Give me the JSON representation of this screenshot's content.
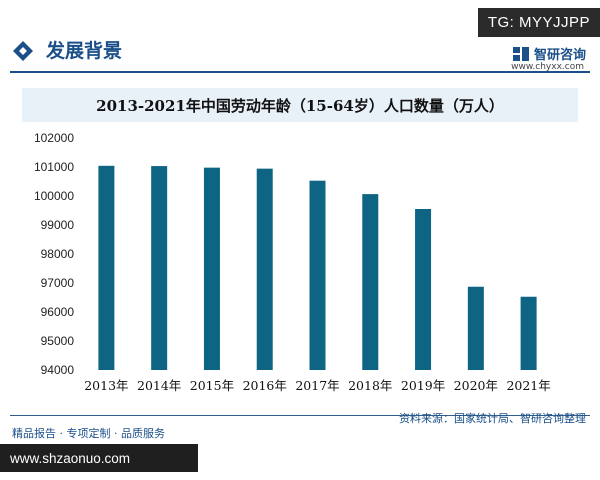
{
  "header": {
    "section_title": "发展背景",
    "tg_badge": "TG: MYYJJPP",
    "brand_name": "智研咨询",
    "brand_url": "www.chyxx.com"
  },
  "footer": {
    "left_text": "精品报告 · 专项定制 · 品质服务",
    "source_text": "资料来源：国家统计局、智研咨询整理",
    "url_badge": "www.shzaonuo.com"
  },
  "colors": {
    "bar": "#0e6583",
    "title_bg": "#e9f1f8",
    "accent": "#1b4f8a"
  },
  "chart_data": {
    "type": "bar",
    "title": "2013-2021年中国劳动年龄（15-64岁）人口数量（万人）",
    "categories": [
      "2013年",
      "2014年",
      "2015年",
      "2016年",
      "2017年",
      "2018年",
      "2019年",
      "2020年",
      "2021年"
    ],
    "values": [
      101041,
      101032,
      100978,
      100943,
      100528,
      100065,
      99552,
      96871,
      96526
    ],
    "ylim": [
      94000,
      102000
    ],
    "yticks": [
      "94000",
      "95000",
      "96000",
      "97000",
      "98000",
      "99000",
      "100000",
      "101000",
      "102000"
    ],
    "grid": false,
    "xlabel": "",
    "ylabel": ""
  }
}
